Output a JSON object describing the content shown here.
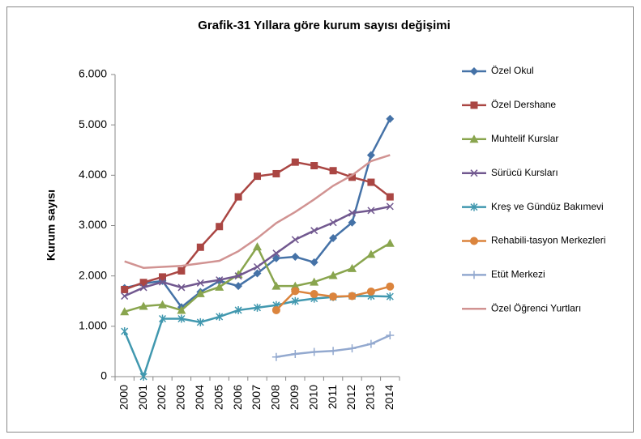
{
  "chart_data": {
    "type": "line",
    "title": "Grafik-31 Yıllara göre kurum sayısı değişimi",
    "y_label": "Kurum sayısı",
    "categories": [
      "2000",
      "2001",
      "2002",
      "2003",
      "2004",
      "2005",
      "2006",
      "2007",
      "2008",
      "2009",
      "2010",
      "2011",
      "2012",
      "2013",
      "2014"
    ],
    "ylim": [
      0,
      6000
    ],
    "yticks": [
      0,
      {
        "value": 1000,
        "label": "1.000"
      },
      {
        "value": 2000,
        "label": "2.000"
      },
      {
        "value": 3000,
        "label": "3.000"
      },
      {
        "value": 4000,
        "label": "4.000"
      },
      {
        "value": 5000,
        "label": "5.000"
      },
      {
        "value": 6000,
        "label": "6.000"
      }
    ],
    "grid": false,
    "legend": "right",
    "series": [
      {
        "name": "Özel Okul",
        "color": "#4572a7",
        "marker": "diamond",
        "values": [
          1760,
          1850,
          1900,
          1380,
          1680,
          1900,
          1800,
          2050,
          2350,
          2380,
          2270,
          2750,
          3060,
          4400,
          5120
        ]
      },
      {
        "name": "Özel Dershane",
        "color": "#aa4643",
        "marker": "square",
        "values": [
          1730,
          1870,
          1980,
          2100,
          2570,
          2980,
          3570,
          3980,
          4030,
          4260,
          4190,
          4090,
          3960,
          3860,
          3570
        ]
      },
      {
        "name": "Muhtelif Kurslar",
        "color": "#89a54e",
        "marker": "triangle",
        "values": [
          1290,
          1400,
          1430,
          1320,
          1650,
          1780,
          2030,
          2580,
          1800,
          1800,
          1880,
          2010,
          2150,
          2430,
          2650
        ]
      },
      {
        "name": "Sürücü Kursları",
        "color": "#71588f",
        "marker": "x",
        "values": [
          1600,
          1770,
          1880,
          1770,
          1860,
          1920,
          2000,
          2180,
          2450,
          2720,
          2900,
          3060,
          3250,
          3300,
          3380
        ]
      },
      {
        "name": "Kreş ve Gündüz Bakımevi",
        "color": "#4198af",
        "marker": "star",
        "values": [
          900,
          0,
          1150,
          1150,
          1080,
          1190,
          1320,
          1370,
          1420,
          1500,
          1550,
          1580,
          1600,
          1600,
          1590
        ]
      },
      {
        "name": "Rehabili-tasyon Merkezleri",
        "color": "#db843d",
        "marker": "circle",
        "values": [
          null,
          null,
          null,
          null,
          null,
          null,
          null,
          null,
          1320,
          1700,
          1640,
          1590,
          1600,
          1690,
          1790
        ]
      },
      {
        "name": "Etüt Merkezi",
        "color": "#93a9cf",
        "marker": "plus",
        "values": [
          null,
          null,
          null,
          null,
          null,
          null,
          null,
          null,
          390,
          450,
          490,
          510,
          560,
          650,
          820
        ]
      },
      {
        "name": "Özel Öğrenci Yurtları",
        "color": "#d19392",
        "marker": "none",
        "values": [
          2290,
          2160,
          2180,
          2200,
          2250,
          2300,
          2490,
          2750,
          3050,
          3270,
          3520,
          3790,
          4000,
          4280,
          4400
        ]
      }
    ]
  }
}
